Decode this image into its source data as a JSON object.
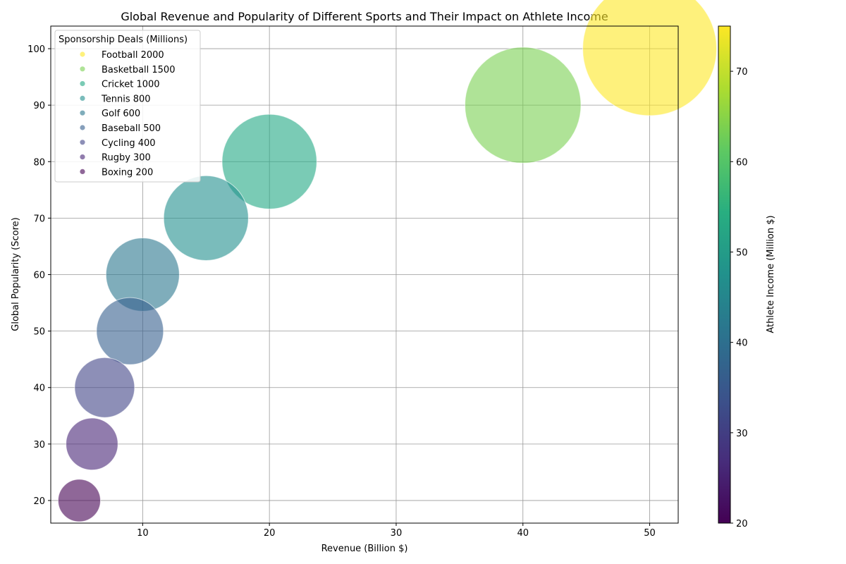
{
  "chart_data": {
    "type": "scatter",
    "title": "Global Revenue and Popularity of Different Sports and Their Impact on Athlete Income",
    "xlabel": "Revenue (Billion $)",
    "ylabel": "Global Popularity (Score)",
    "xlim": [
      2.75,
      52.25
    ],
    "ylim": [
      16,
      104
    ],
    "xticks": [
      10,
      20,
      30,
      40,
      50
    ],
    "yticks": [
      20,
      30,
      40,
      50,
      60,
      70,
      80,
      90,
      100
    ],
    "grid": true,
    "legend": {
      "title": "Sponsorship Deals (Millions)",
      "position": "top-left"
    },
    "colorbar": {
      "label": "Athlete Income (Million $)",
      "colormap": "viridis",
      "range": [
        20,
        75
      ],
      "ticks": [
        20,
        30,
        40,
        50,
        60,
        70
      ]
    },
    "points": [
      {
        "sport": "Football",
        "revenue": 50,
        "popularity": 100,
        "sponsorship": 2000,
        "athlete_income": 75,
        "legend_label": "Football 2000",
        "color": "#fde725"
      },
      {
        "sport": "Basketball",
        "revenue": 40,
        "popularity": 90,
        "sponsorship": 1500,
        "athlete_income": 65,
        "legend_label": "Basketball 1500",
        "color": "#7ad151"
      },
      {
        "sport": "Cricket",
        "revenue": 20,
        "popularity": 80,
        "sponsorship": 1000,
        "athlete_income": 55,
        "legend_label": "Cricket 1000",
        "color": "#22a884"
      },
      {
        "sport": "Tennis",
        "revenue": 15,
        "popularity": 70,
        "sponsorship": 800,
        "athlete_income": 48,
        "legend_label": "Tennis 800",
        "color": "#218f8d"
      },
      {
        "sport": "Golf",
        "revenue": 10,
        "popularity": 60,
        "sponsorship": 600,
        "athlete_income": 42,
        "legend_label": "Golf 600",
        "color": "#2a768e"
      },
      {
        "sport": "Baseball",
        "revenue": 9,
        "popularity": 50,
        "sponsorship": 500,
        "athlete_income": 37,
        "legend_label": "Baseball 500",
        "color": "#355f8d"
      },
      {
        "sport": "Cycling",
        "revenue": 7,
        "popularity": 40,
        "sponsorship": 400,
        "athlete_income": 32,
        "legend_label": "Cycling 400",
        "color": "#414487"
      },
      {
        "sport": "Rugby",
        "revenue": 6,
        "popularity": 30,
        "sponsorship": 300,
        "athlete_income": 27,
        "legend_label": "Rugby 300",
        "color": "#482576"
      },
      {
        "sport": "Boxing",
        "revenue": 5,
        "popularity": 20,
        "sponsorship": 200,
        "athlete_income": 20,
        "legend_label": "Boxing 200",
        "color": "#440154"
      }
    ]
  }
}
